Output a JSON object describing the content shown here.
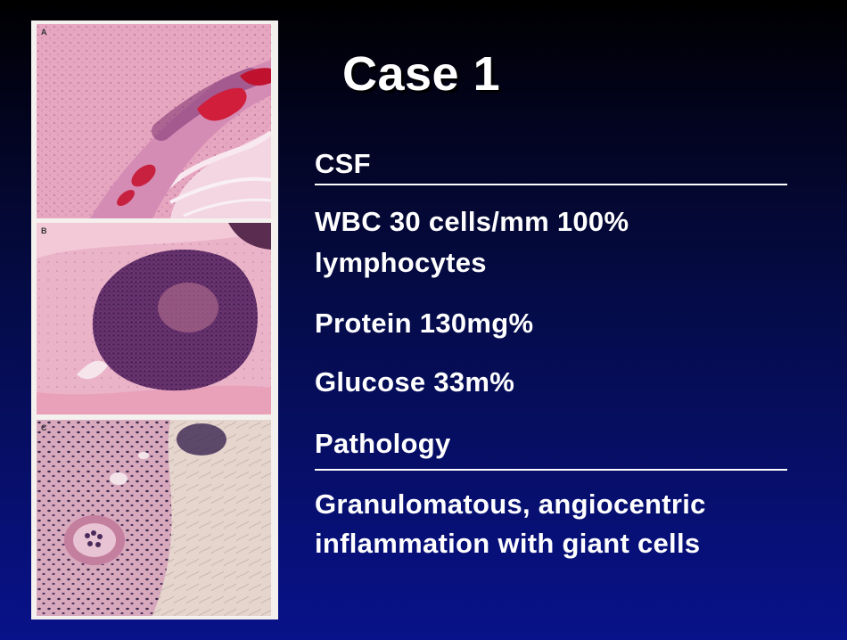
{
  "slide": {
    "title": "Case 1",
    "background_colors": [
      "#000000",
      "#08128a"
    ],
    "text_color": "#ffffff"
  },
  "figure": {
    "description_icon": "histology-micrograph-triptych",
    "panels": [
      {
        "letter": "A"
      },
      {
        "letter": "B"
      },
      {
        "letter": "C"
      }
    ]
  },
  "content": {
    "csf_heading": "CSF",
    "wbc_line1": "WBC 30 cells/mm 100%",
    "wbc_line2": "lymphocytes",
    "protein": "Protein 130mg%",
    "glucose": "Glucose 33m%",
    "pathology_heading": "Pathology",
    "pathology_line1": "Granulomatous, angiocentric",
    "pathology_line2": "inflammation with giant cells"
  }
}
